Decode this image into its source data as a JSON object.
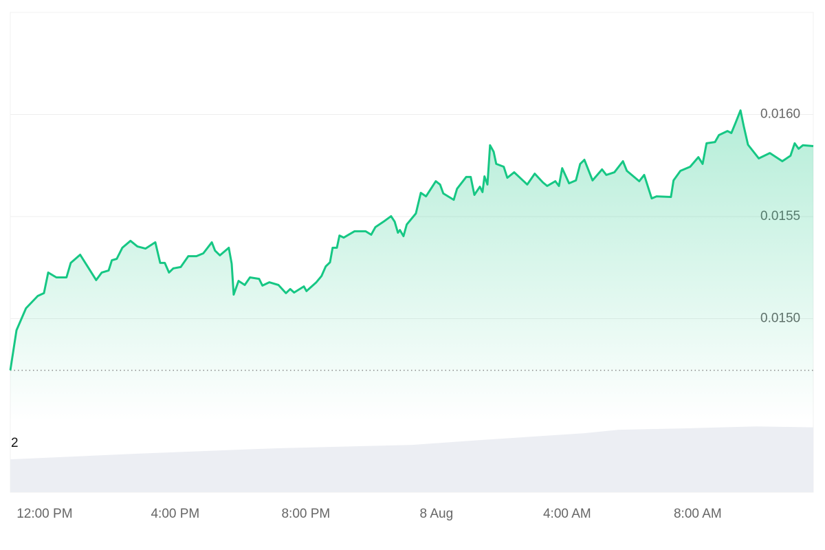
{
  "chart_data": [
    {
      "type": "line",
      "color": "#16c784",
      "grid": true,
      "area": true,
      "xlim": [
        10.95,
        35.54
      ],
      "ylim": [
        0.0145,
        0.0165
      ],
      "xticks": [
        {
          "value": 12,
          "label": "12:00 PM"
        },
        {
          "value": 16,
          "label": "4:00 PM"
        },
        {
          "value": 20,
          "label": "8:00 PM"
        },
        {
          "value": 24,
          "label": "8 Aug"
        },
        {
          "value": 28,
          "label": "4:00 AM"
        },
        {
          "value": 32,
          "label": "8:00 AM"
        }
      ],
      "yticks": [
        {
          "value": 0.015,
          "label": "0.0150"
        },
        {
          "value": 0.0155,
          "label": "0.0155"
        },
        {
          "value": 0.016,
          "label": "0.0160"
        }
      ],
      "x": [
        10.95,
        11.14,
        11.43,
        11.79,
        11.98,
        12.11,
        12.36,
        12.67,
        12.8,
        13.09,
        13.37,
        13.58,
        13.75,
        13.96,
        14.06,
        14.21,
        14.38,
        14.63,
        14.84,
        15.09,
        15.39,
        15.54,
        15.68,
        15.81,
        15.94,
        16.17,
        16.4,
        16.65,
        16.86,
        17.12,
        17.22,
        17.37,
        17.64,
        17.73,
        17.79,
        17.94,
        18.13,
        18.29,
        18.57,
        18.67,
        18.88,
        19.16,
        19.39,
        19.52,
        19.64,
        19.94,
        20.02,
        20.32,
        20.48,
        20.61,
        20.74,
        20.82,
        20.95,
        21.03,
        21.16,
        21.49,
        21.83,
        22.0,
        22.13,
        22.38,
        22.61,
        22.72,
        22.82,
        22.88,
        22.99,
        23.09,
        23.37,
        23.52,
        23.68,
        23.98,
        24.11,
        24.21,
        24.53,
        24.63,
        24.91,
        25.05,
        25.16,
        25.33,
        25.41,
        25.47,
        25.56,
        25.64,
        25.75,
        25.83,
        26.06,
        26.17,
        26.38,
        26.78,
        27.01,
        27.26,
        27.39,
        27.64,
        27.75,
        27.85,
        28.06,
        28.27,
        28.4,
        28.53,
        28.78,
        29.07,
        29.2,
        29.45,
        29.71,
        29.83,
        30.21,
        30.36,
        30.59,
        30.74,
        31.18,
        31.26,
        31.47,
        31.77,
        32.02,
        32.15,
        32.27,
        32.53,
        32.65,
        32.91,
        33.03,
        33.16,
        33.31,
        33.41,
        33.54,
        33.87,
        34.21,
        34.59,
        34.84,
        34.97,
        35.09,
        35.22,
        35.54
      ],
      "values": [
        0.014747,
        0.014943,
        0.015051,
        0.015111,
        0.015125,
        0.015226,
        0.015202,
        0.015202,
        0.015273,
        0.015313,
        0.015242,
        0.015189,
        0.015226,
        0.015236,
        0.015286,
        0.015293,
        0.015347,
        0.015381,
        0.015354,
        0.015343,
        0.015374,
        0.015273,
        0.015273,
        0.015226,
        0.015246,
        0.015253,
        0.015306,
        0.015306,
        0.01532,
        0.015374,
        0.015333,
        0.01531,
        0.015347,
        0.015269,
        0.015118,
        0.015185,
        0.015165,
        0.015202,
        0.015195,
        0.015162,
        0.015178,
        0.015165,
        0.015125,
        0.015145,
        0.015128,
        0.015158,
        0.015135,
        0.015178,
        0.015209,
        0.015256,
        0.015276,
        0.015347,
        0.015347,
        0.015407,
        0.015397,
        0.015428,
        0.015428,
        0.015411,
        0.015448,
        0.015475,
        0.015502,
        0.015475,
        0.015421,
        0.015434,
        0.015404,
        0.015461,
        0.015515,
        0.015616,
        0.015599,
        0.015673,
        0.015657,
        0.015613,
        0.015582,
        0.015636,
        0.015694,
        0.015694,
        0.015606,
        0.015646,
        0.01562,
        0.015697,
        0.015657,
        0.015849,
        0.015818,
        0.015758,
        0.015744,
        0.01569,
        0.015717,
        0.015657,
        0.01571,
        0.015667,
        0.01565,
        0.015673,
        0.01565,
        0.015737,
        0.015663,
        0.015677,
        0.015758,
        0.015778,
        0.015677,
        0.015731,
        0.015704,
        0.015717,
        0.015771,
        0.015724,
        0.015673,
        0.015704,
        0.015589,
        0.015599,
        0.015596,
        0.015677,
        0.015724,
        0.015744,
        0.015791,
        0.015758,
        0.015859,
        0.015865,
        0.015899,
        0.015919,
        0.015909,
        0.01596,
        0.01602,
        0.015943,
        0.015852,
        0.015785,
        0.015811,
        0.015771,
        0.015798,
        0.015859,
        0.015832,
        0.015849,
        0.015845
      ]
    },
    {
      "type": "area",
      "color": "#eceef3",
      "xlim": [
        10.95,
        35.54
      ],
      "ylim": [
        0,
        2.93
      ],
      "yticks": [
        2
      ],
      "x": [
        10.95,
        14.84,
        19.05,
        23.26,
        25.37,
        28.53,
        29.58,
        31.68,
        33.79,
        35.54
      ],
      "values": [
        1.35,
        1.58,
        1.8,
        1.94,
        2.14,
        2.42,
        2.56,
        2.62,
        2.7,
        2.66
      ]
    }
  ]
}
